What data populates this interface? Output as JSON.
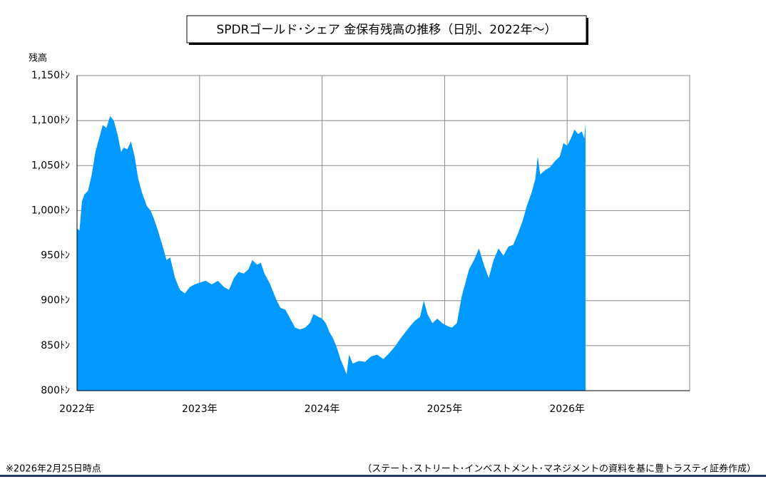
{
  "chart_data": {
    "type": "area",
    "title": "SPDRゴールド･シェア 金保有残高の推移（日別、2022年～）",
    "y_label": "残高",
    "note": "※2026年2月25日時点",
    "source": "（ステート･ストリート･インベストメント･マネジメントの資料を基に豊トラスティ証券作成）",
    "color": "#0099ff",
    "grid": true,
    "xlim": [
      2022,
      2027
    ],
    "xticks": [
      {
        "value": 2022,
        "label": "2022年"
      },
      {
        "value": 2023,
        "label": "2023年"
      },
      {
        "value": 2024,
        "label": "2024年"
      },
      {
        "value": 2025,
        "label": "2025年"
      },
      {
        "value": 2026,
        "label": "2026年"
      }
    ],
    "ylim": [
      800,
      1150
    ],
    "yticks": [
      {
        "value": 800,
        "label": "800ﾄﾝ"
      },
      {
        "value": 850,
        "label": "850ﾄﾝ"
      },
      {
        "value": 900,
        "label": "900ﾄﾝ"
      },
      {
        "value": 950,
        "label": "950ﾄﾝ"
      },
      {
        "value": 1000,
        "label": "1,000ﾄﾝ"
      },
      {
        "value": 1050,
        "label": "1,050ﾄﾝ"
      },
      {
        "value": 1100,
        "label": "1,100ﾄﾝ"
      },
      {
        "value": 1150,
        "label": "1,150ﾄﾝ"
      }
    ],
    "x": [
      2022.0,
      2022.02,
      2022.04,
      2022.06,
      2022.09,
      2022.12,
      2022.15,
      2022.18,
      2022.21,
      2022.24,
      2022.27,
      2022.3,
      2022.33,
      2022.36,
      2022.38,
      2022.41,
      2022.44,
      2022.47,
      2022.5,
      2022.53,
      2022.57,
      2022.6,
      2022.63,
      2022.66,
      2022.7,
      2022.73,
      2022.76,
      2022.8,
      2022.84,
      2022.88,
      2022.92,
      2022.96,
      2023.0,
      2023.05,
      2023.1,
      2023.15,
      2023.2,
      2023.24,
      2023.28,
      2023.32,
      2023.36,
      2023.4,
      2023.43,
      2023.47,
      2023.5,
      2023.53,
      2023.57,
      2023.6,
      2023.63,
      2023.66,
      2023.7,
      2023.74,
      2023.78,
      2023.82,
      2023.86,
      2023.9,
      2023.93,
      2023.97,
      2024.0,
      2024.03,
      2024.06,
      2024.09,
      2024.12,
      2024.15,
      2024.18,
      2024.2,
      2024.22,
      2024.25,
      2024.3,
      2024.35,
      2024.4,
      2024.45,
      2024.5,
      2024.55,
      2024.6,
      2024.64,
      2024.68,
      2024.72,
      2024.76,
      2024.8,
      2024.83,
      2024.86,
      2024.9,
      2024.94,
      2024.98,
      2025.02,
      2025.06,
      2025.1,
      2025.14,
      2025.17,
      2025.2,
      2025.24,
      2025.28,
      2025.32,
      2025.36,
      2025.4,
      2025.44,
      2025.48,
      2025.52,
      2025.56,
      2025.6,
      2025.64,
      2025.67,
      2025.71,
      2025.74,
      2025.76,
      2025.78,
      2025.82,
      2025.86,
      2025.9,
      2025.94,
      2025.97,
      2026.0,
      2026.03,
      2026.06,
      2026.09,
      2026.12,
      2026.14,
      2026.15
    ],
    "values": [
      980,
      978,
      1010,
      1018,
      1022,
      1040,
      1065,
      1080,
      1095,
      1092,
      1105,
      1100,
      1085,
      1065,
      1070,
      1068,
      1077,
      1060,
      1035,
      1020,
      1005,
      1000,
      990,
      978,
      960,
      945,
      948,
      925,
      912,
      908,
      915,
      918,
      920,
      922,
      918,
      922,
      915,
      912,
      925,
      932,
      930,
      935,
      945,
      940,
      942,
      930,
      920,
      910,
      900,
      892,
      890,
      880,
      870,
      868,
      870,
      875,
      885,
      882,
      880,
      875,
      865,
      858,
      848,
      835,
      825,
      818,
      840,
      830,
      833,
      832,
      838,
      840,
      835,
      842,
      850,
      858,
      865,
      872,
      878,
      882,
      900,
      885,
      875,
      880,
      875,
      872,
      870,
      875,
      905,
      920,
      935,
      945,
      958,
      940,
      925,
      945,
      958,
      950,
      960,
      962,
      975,
      990,
      1005,
      1020,
      1035,
      1060,
      1040,
      1045,
      1048,
      1055,
      1060,
      1075,
      1072,
      1080,
      1090,
      1085,
      1088,
      1080,
      1097
    ]
  }
}
